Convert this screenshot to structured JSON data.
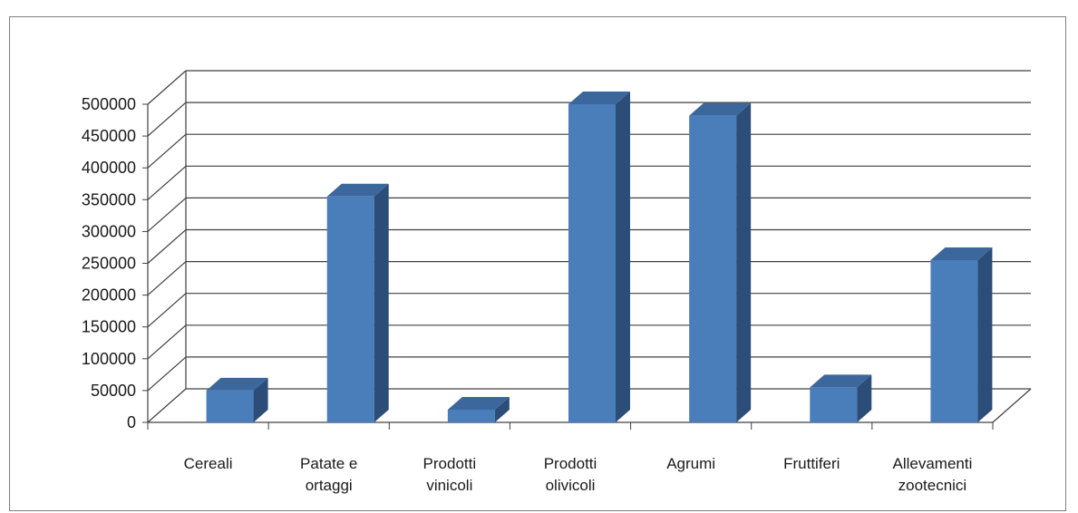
{
  "chart_data": {
    "type": "bar",
    "style": "3d-column",
    "categories": [
      [
        "Cereali"
      ],
      [
        "Patate e",
        "ortaggi"
      ],
      [
        "Prodotti",
        "vinicoli"
      ],
      [
        "Prodotti",
        "olivicoli"
      ],
      [
        "Agrumi"
      ],
      [
        "Fruttiferi"
      ],
      [
        "Allevamenti",
        "zootecnici"
      ]
    ],
    "values": [
      50000,
      355000,
      20000,
      500000,
      482000,
      55000,
      255000
    ],
    "ylim": [
      0,
      500000
    ],
    "yticks": [
      0,
      50000,
      100000,
      150000,
      200000,
      250000,
      300000,
      350000,
      400000,
      450000,
      500000
    ],
    "grid": true,
    "legend": "none",
    "colors": {
      "bar_front": "#4a7ebb",
      "bar_side": "#2c4d77",
      "bar_top": "#3b679c",
      "gridline": "#404040",
      "frame": "#7f7f7f"
    }
  }
}
